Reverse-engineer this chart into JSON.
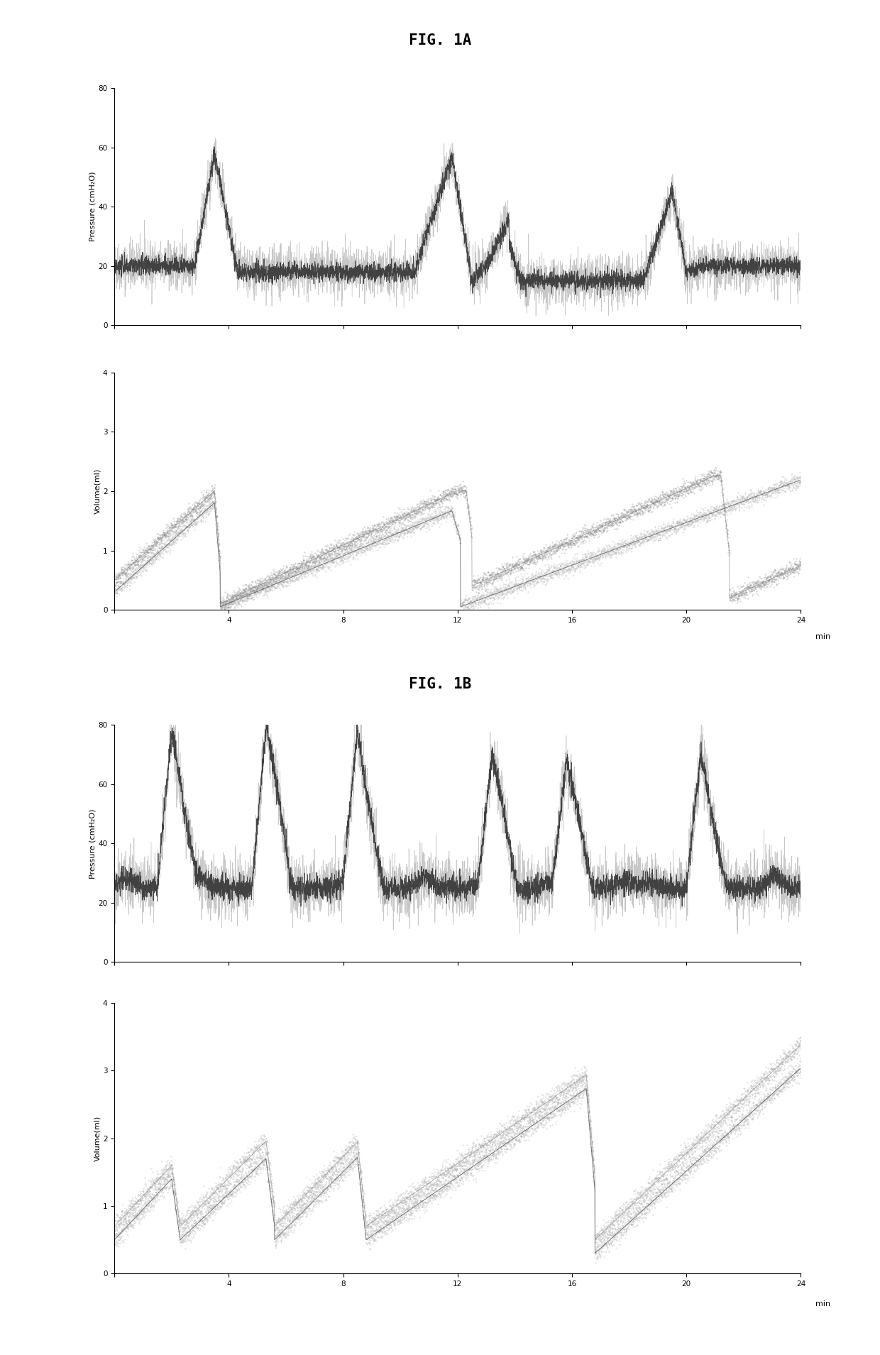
{
  "fig_title_A": "FIG. 1A",
  "fig_title_B": "FIG. 1B",
  "pressure_ylabel": "Pressure (cmH₂O)",
  "volume_ylabel": "Volume(ml)",
  "xlabel": "min",
  "pressure_ylim_A": [
    0,
    80
  ],
  "pressure_yticks_A": [
    0,
    20,
    40,
    60,
    80
  ],
  "volume_ylim_A": [
    0,
    4
  ],
  "volume_yticks_A": [
    0,
    1,
    2,
    3,
    4
  ],
  "pressure_ylim_B": [
    0,
    80
  ],
  "pressure_yticks_B": [
    0,
    20,
    40,
    60,
    80
  ],
  "volume_ylim_B": [
    0,
    4
  ],
  "volume_yticks_B": [
    0,
    1,
    2,
    3,
    4
  ],
  "xlim": [
    0,
    24
  ],
  "xticks": [
    0,
    4,
    8,
    12,
    16,
    20,
    24
  ],
  "seed": 42,
  "bg_color": "#ffffff"
}
